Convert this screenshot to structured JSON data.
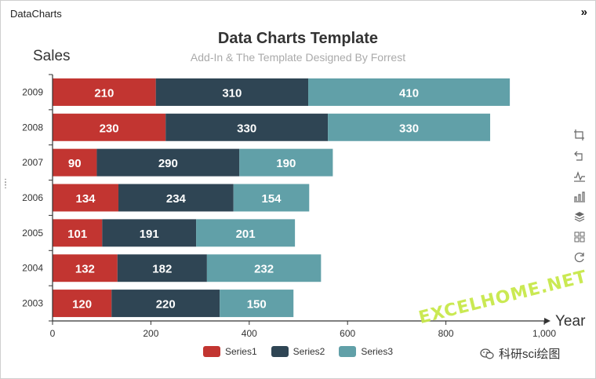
{
  "window": {
    "title": "DataCharts",
    "collapse_glyph": "»"
  },
  "toolbox": [
    {
      "icon": "crop-icon"
    },
    {
      "icon": "undo-icon"
    },
    {
      "icon": "line-chart-icon"
    },
    {
      "icon": "bar-chart-icon"
    },
    {
      "icon": "stack-icon"
    },
    {
      "icon": "grid-icon"
    },
    {
      "icon": "refresh-icon"
    }
  ],
  "colors": {
    "series1": "#c23531",
    "series2": "#2f4554",
    "series3": "#61a0a8"
  },
  "watermark": "EXCELHOME.NET",
  "wechat_label": "科研sci绘图",
  "chart_data": {
    "type": "bar",
    "orientation": "horizontal",
    "stacked": true,
    "title": "Data Charts Template",
    "subtitle": "Add-In & The Template Designed By Forrest",
    "ylabel": "Sales",
    "xlabel": "Year",
    "categories": [
      "2003",
      "2004",
      "2005",
      "2006",
      "2007",
      "2008",
      "2009"
    ],
    "xlim": [
      0,
      1000
    ],
    "xticks": [
      "0",
      "200",
      "400",
      "600",
      "800",
      "1,000"
    ],
    "grid": false,
    "legend_position": "bottom",
    "series": [
      {
        "name": "Series1",
        "values": [
          120,
          132,
          101,
          134,
          90,
          230,
          210
        ]
      },
      {
        "name": "Series2",
        "values": [
          220,
          182,
          191,
          234,
          290,
          330,
          310
        ]
      },
      {
        "name": "Series3",
        "values": [
          150,
          232,
          201,
          154,
          190,
          330,
          410
        ]
      }
    ]
  }
}
